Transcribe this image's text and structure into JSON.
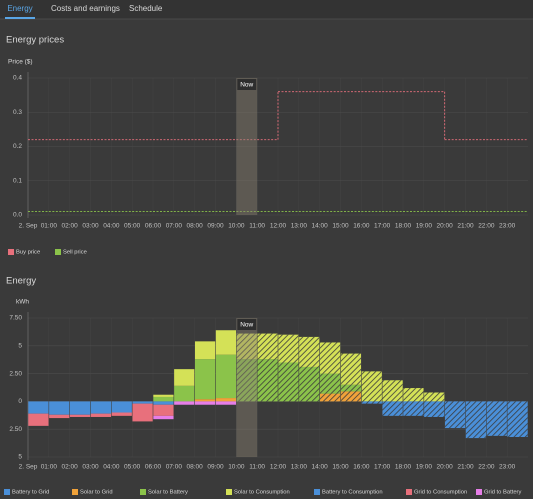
{
  "tabs": [
    "Energy",
    "Costs and earnings",
    "Schedule"
  ],
  "chart_data": [
    {
      "type": "line",
      "step": true,
      "title": "Energy prices",
      "y_label": "Price ($)",
      "categories": [
        "2. Sep",
        "01:00",
        "02:00",
        "03:00",
        "04:00",
        "05:00",
        "06:00",
        "07:00",
        "08:00",
        "09:00",
        "10:00",
        "11:00",
        "12:00",
        "13:00",
        "14:00",
        "15:00",
        "16:00",
        "17:00",
        "18:00",
        "19:00",
        "20:00",
        "21:00",
        "22:00",
        "23:00"
      ],
      "series": [
        {
          "name": "Buy price",
          "color": "#e8707c",
          "values": [
            0.22,
            0.22,
            0.22,
            0.22,
            0.22,
            0.22,
            0.22,
            0.22,
            0.22,
            0.22,
            0.22,
            0.22,
            0.36,
            0.36,
            0.36,
            0.36,
            0.36,
            0.36,
            0.36,
            0.36,
            0.22,
            0.22,
            0.22,
            0.22
          ]
        },
        {
          "name": "Sell price",
          "color": "#8bc34a",
          "values": [
            0.01,
            0.01,
            0.01,
            0.01,
            0.01,
            0.01,
            0.01,
            0.01,
            0.01,
            0.01,
            0.01,
            0.01,
            0.01,
            0.01,
            0.01,
            0.01,
            0.01,
            0.01,
            0.01,
            0.01,
            0.01,
            0.01,
            0.01,
            0.01
          ]
        }
      ],
      "ylim": [
        0,
        0.4
      ],
      "yticks": [
        {
          "value": 0,
          "label": "0.0"
        },
        0.1,
        0.2,
        0.3,
        0.4
      ],
      "grid": true,
      "annotations": [
        {
          "text": "Now",
          "x": "10:00"
        }
      ]
    },
    {
      "type": "bar",
      "stacked": true,
      "title": "Energy",
      "y_label": "kWh",
      "categories": [
        "2. Sep",
        "01:00",
        "02:00",
        "03:00",
        "04:00",
        "05:00",
        "06:00",
        "07:00",
        "08:00",
        "09:00",
        "10:00",
        "11:00",
        "12:00",
        "13:00",
        "14:00",
        "15:00",
        "16:00",
        "17:00",
        "18:00",
        "19:00",
        "20:00",
        "21:00",
        "22:00",
        "23:00"
      ],
      "series": [
        {
          "name": "Battery to Grid",
          "color": "#4a8fd8",
          "values": [
            0,
            0,
            0,
            0,
            0,
            0,
            0,
            0,
            0,
            0,
            0,
            0,
            0,
            0,
            0,
            0,
            0,
            0,
            0,
            0,
            0,
            0,
            0,
            0
          ]
        },
        {
          "name": "Solar to Grid",
          "color": "#f0a23a",
          "values": [
            0,
            0,
            0,
            0,
            0,
            0,
            0,
            0,
            0.2,
            0.3,
            0,
            0,
            0,
            0,
            0.7,
            0.9,
            0,
            0,
            0,
            0,
            0,
            0,
            0,
            0
          ]
        },
        {
          "name": "Solar to Battery",
          "color": "#8bc34a",
          "values": [
            0,
            0,
            0,
            0,
            0,
            0,
            0.4,
            1.4,
            3.6,
            3.9,
            3.8,
            3.8,
            3.5,
            3.1,
            1.8,
            0.6,
            0,
            0,
            0,
            0,
            0,
            0,
            0,
            0
          ]
        },
        {
          "name": "Solar to Consumption",
          "color": "#d4e157",
          "values": [
            0,
            0,
            0,
            0,
            0,
            0,
            0.2,
            1.5,
            1.6,
            2.2,
            2.3,
            2.3,
            2.5,
            2.7,
            2.8,
            2.8,
            2.7,
            1.9,
            1.2,
            0.8,
            0,
            0,
            0,
            0
          ]
        },
        {
          "name": "Battery to Consumption",
          "color": "#4a8fd8",
          "values": [
            -1.1,
            -1.2,
            -1.2,
            -1.1,
            -1.0,
            -0.2,
            -0.3,
            0,
            0,
            0,
            0,
            0,
            0,
            0,
            0,
            0,
            -0.2,
            -1.3,
            -1.3,
            -1.4,
            -2.4,
            -3.3,
            -3.1,
            -3.2
          ]
        },
        {
          "name": "Grid to Consumption",
          "color": "#e8707c",
          "values": [
            -1.1,
            -0.3,
            -0.2,
            -0.3,
            -0.3,
            -1.6,
            -1.0,
            0,
            0,
            0,
            0,
            0,
            0,
            0,
            0,
            0,
            0,
            0,
            0,
            0,
            0,
            0,
            0,
            0
          ]
        },
        {
          "name": "Grid to Battery",
          "color": "#e67ee8",
          "values": [
            0,
            0,
            0,
            0,
            0,
            0,
            -0.3,
            -0.3,
            -0.3,
            -0.3,
            0,
            0,
            0,
            0,
            0,
            0,
            0,
            0,
            0,
            0,
            0,
            0,
            0,
            0
          ]
        }
      ],
      "ylim": [
        -5,
        7.5
      ],
      "yticks": [
        {
          "value": 7.5,
          "label": "7.50"
        },
        5,
        {
          "value": 2.5,
          "label": "2.50"
        },
        0,
        {
          "value": -2.5,
          "label": "2.50"
        },
        {
          "value": -5,
          "label": "5"
        }
      ],
      "grid": true,
      "annotations": [
        {
          "text": "Now",
          "x": "10:00"
        }
      ]
    }
  ]
}
